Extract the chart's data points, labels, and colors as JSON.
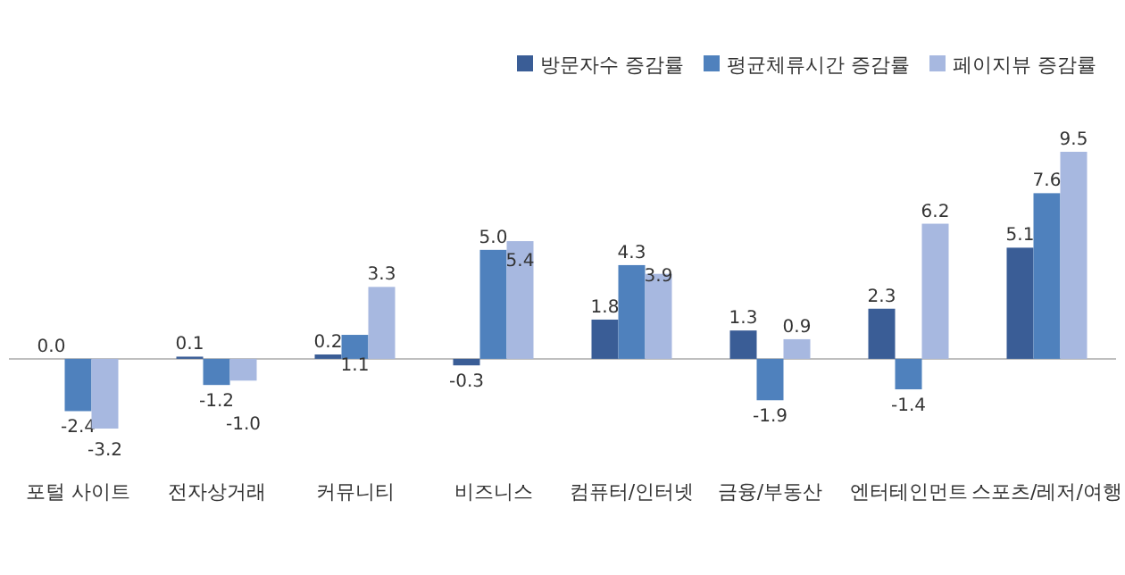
{
  "chart_data": {
    "type": "bar",
    "categories": [
      "포털 사이트",
      "전자상거래",
      "커뮤니티",
      "비즈니스",
      "컴퓨터/인터넷",
      "금융/부동산",
      "엔터테인먼트",
      "스포츠/레저/여행"
    ],
    "series": [
      {
        "name": "방문자수 증감률",
        "color": "#3a5d96",
        "values": [
          0.0,
          0.1,
          0.2,
          -0.3,
          1.8,
          1.3,
          2.3,
          5.1
        ],
        "value_labels": [
          "0.0",
          "0.1",
          "0.2",
          "-0.3",
          "1.8",
          "1.3",
          "2.3",
          "5.1"
        ]
      },
      {
        "name": "평균체류시간 증감률",
        "color": "#4f81bd",
        "values": [
          -2.4,
          -1.2,
          1.1,
          5.0,
          4.3,
          -1.9,
          -1.4,
          7.6
        ],
        "value_labels": [
          "-2.4",
          "-1.2",
          "1.1",
          "5.0",
          "4.3",
          "-1.9",
          "-1.4",
          "7.6"
        ]
      },
      {
        "name": "페이지뷰 증감률",
        "color": "#a7b8e0",
        "values": [
          -3.2,
          -1.0,
          3.3,
          5.4,
          3.9,
          0.9,
          6.2,
          9.5
        ],
        "value_labels": [
          "-3.2",
          "-1.0",
          "3.3",
          "5.4",
          "3.9",
          "0.9",
          "6.2",
          "9.5"
        ]
      }
    ],
    "legend": "top right"
  }
}
